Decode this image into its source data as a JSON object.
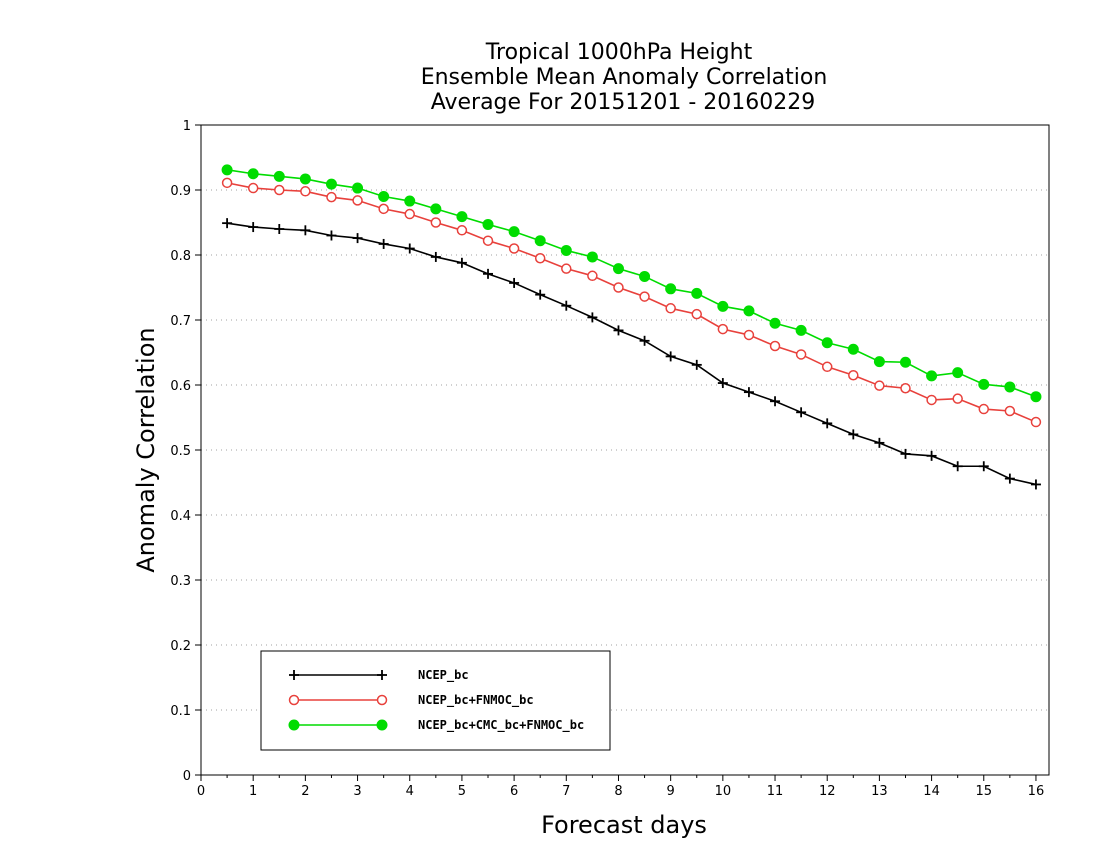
{
  "chart_data": {
    "type": "line",
    "title_lines": [
      "Tropical 1000hPa Height",
      "Ensemble Mean Anomaly Correlation",
      "Average For 20151201 - 20160229"
    ],
    "xlabel": "Forecast days",
    "ylabel": "Anomaly Correlation",
    "xlim": [
      0,
      16.25
    ],
    "ylim": [
      0,
      1
    ],
    "x_ticks": [
      "0",
      "1",
      "2",
      "3",
      "4",
      "5",
      "6",
      "7",
      "8",
      "9",
      "10",
      "11",
      "12",
      "13",
      "14",
      "15",
      "16"
    ],
    "y_ticks": [
      "0",
      "0.1",
      "0.2",
      "0.3",
      "0.4",
      "0.5",
      "0.6",
      "0.7",
      "0.8",
      "0.9",
      "1"
    ],
    "grid": true,
    "legend_position": "bottom-left",
    "x": [
      0.5,
      1,
      1.5,
      2,
      2.5,
      3,
      3.5,
      4,
      4.5,
      5,
      5.5,
      6,
      6.5,
      7,
      7.5,
      8,
      8.5,
      9,
      9.5,
      10,
      10.5,
      11,
      11.5,
      12,
      12.5,
      13,
      13.5,
      14,
      14.5,
      15,
      15.5,
      16
    ],
    "series": [
      {
        "name": "NCEP_bc",
        "color": "#000000",
        "marker": "plus",
        "values": [
          0.849,
          0.843,
          0.84,
          0.838,
          0.83,
          0.826,
          0.817,
          0.81,
          0.797,
          0.788,
          0.771,
          0.757,
          0.739,
          0.722,
          0.704,
          0.684,
          0.668,
          0.644,
          0.631,
          0.603,
          0.589,
          0.575,
          0.558,
          0.541,
          0.524,
          0.511,
          0.494,
          0.491,
          0.475,
          0.475,
          0.456,
          0.447
        ]
      },
      {
        "name": "NCEP_bc+FNMOC_bc",
        "color": "#e8413c",
        "marker": "circle-open",
        "values": [
          0.911,
          0.903,
          0.9,
          0.898,
          0.889,
          0.884,
          0.871,
          0.863,
          0.85,
          0.838,
          0.822,
          0.81,
          0.795,
          0.779,
          0.768,
          0.75,
          0.736,
          0.718,
          0.709,
          0.686,
          0.677,
          0.66,
          0.647,
          0.628,
          0.615,
          0.599,
          0.595,
          0.577,
          0.579,
          0.563,
          0.56,
          0.543
        ]
      },
      {
        "name": "NCEP_bc+CMC_bc+FNMOC_bc",
        "color": "#00dc00",
        "marker": "circle-filled",
        "values": [
          0.931,
          0.925,
          0.921,
          0.917,
          0.909,
          0.903,
          0.89,
          0.883,
          0.871,
          0.859,
          0.847,
          0.836,
          0.822,
          0.807,
          0.797,
          0.779,
          0.767,
          0.748,
          0.741,
          0.721,
          0.714,
          0.695,
          0.684,
          0.665,
          0.655,
          0.636,
          0.635,
          0.614,
          0.619,
          0.601,
          0.597,
          0.582
        ]
      }
    ]
  }
}
